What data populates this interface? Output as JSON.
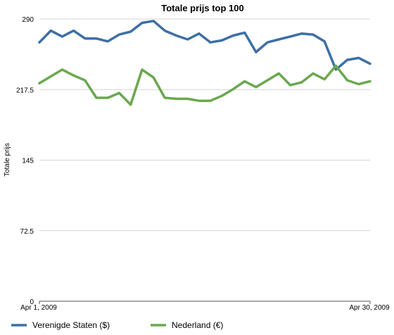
{
  "chart_data": {
    "type": "line",
    "title": "Totale prijs top 100",
    "ylabel": "Totale prijs",
    "xlabel": "",
    "ylim": [
      0,
      290
    ],
    "yticks": [
      "0",
      "72.5",
      "145",
      "217.5",
      "290"
    ],
    "x_start_label": "Apr 1, 2009",
    "x_end_label": "Apr 30, 2009",
    "x": [
      "2009-04-01",
      "2009-04-02",
      "2009-04-03",
      "2009-04-04",
      "2009-04-05",
      "2009-04-06",
      "2009-04-07",
      "2009-04-08",
      "2009-04-09",
      "2009-04-10",
      "2009-04-11",
      "2009-04-12",
      "2009-04-13",
      "2009-04-14",
      "2009-04-15",
      "2009-04-16",
      "2009-04-17",
      "2009-04-18",
      "2009-04-19",
      "2009-04-20",
      "2009-04-21",
      "2009-04-22",
      "2009-04-23",
      "2009-04-24",
      "2009-04-25",
      "2009-04-26",
      "2009-04-27",
      "2009-04-28",
      "2009-04-29",
      "2009-04-30"
    ],
    "grid": true,
    "legend_position": "bottom",
    "series": [
      {
        "name": "Verenigde Staten ($)",
        "color": "#3d6fa5",
        "values": [
          266,
          278,
          272,
          278,
          270,
          270,
          267,
          274,
          277,
          286,
          288,
          278,
          273,
          269,
          275,
          266,
          268,
          273,
          276,
          256,
          266,
          269,
          272,
          275,
          274,
          267,
          238,
          248,
          250,
          244
        ]
      },
      {
        "name": "Nederland (€)",
        "color": "#6aa84f",
        "values": [
          224,
          231,
          238,
          232,
          227,
          209,
          209,
          214,
          202,
          238,
          230,
          209,
          208,
          208,
          206,
          206,
          211,
          218,
          226,
          220,
          227,
          234,
          222,
          225,
          234,
          228,
          242,
          227,
          223,
          226
        ]
      }
    ]
  }
}
